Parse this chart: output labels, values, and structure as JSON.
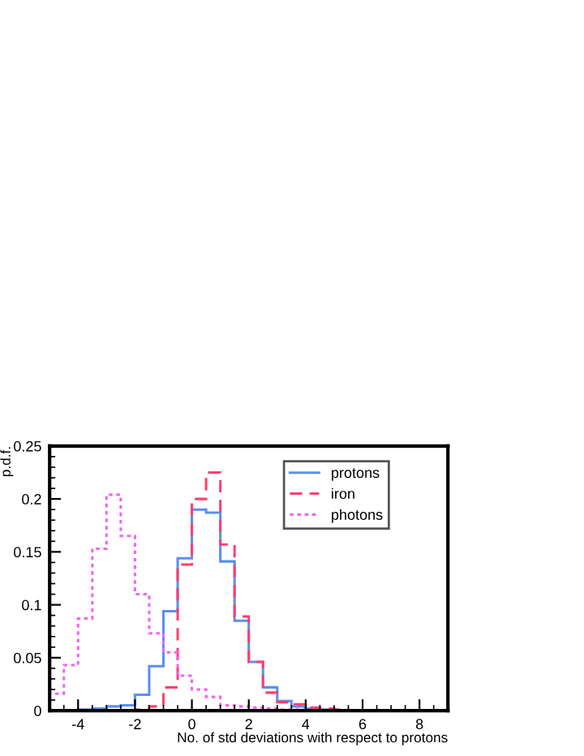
{
  "chart_data": {
    "type": "histogram",
    "xlabel": "No. of std deviations with respect to protons",
    "ylabel": "p.d.f.",
    "bins": [
      -5,
      -4.5,
      -4,
      -3.5,
      -3,
      -2.5,
      -2,
      -1.5,
      -1,
      -0.5,
      0,
      0.5,
      1,
      1.5,
      2,
      2.5,
      3,
      3.5,
      4,
      4.5,
      5,
      5.5,
      6,
      6.5,
      7,
      7.5,
      8,
      8.5,
      9
    ],
    "series": [
      {
        "name": "protons",
        "color": "#5b8ff0",
        "line_style": "solid",
        "values": [
          0,
          0,
          0.001,
          0.002,
          0.004,
          0.005,
          0.015,
          0.042,
          0.094,
          0.144,
          0.19,
          0.187,
          0.141,
          0.085,
          0.046,
          0.022,
          0.009,
          0.004,
          0.002,
          0.001,
          0,
          0,
          0,
          0,
          0,
          0,
          0,
          0
        ]
      },
      {
        "name": "iron",
        "color": "#ff4070",
        "line_style": "dashed",
        "values": [
          0,
          0,
          0,
          0,
          0,
          0,
          0.001,
          0.004,
          0.022,
          0.138,
          0.2,
          0.225,
          0.157,
          0.089,
          0.046,
          0.017,
          0.008,
          0.006,
          0.003,
          0.002,
          0.001,
          0,
          0,
          0,
          0,
          0,
          0,
          0
        ]
      },
      {
        "name": "photons",
        "color": "#f066f0",
        "line_style": "dotted",
        "values": [
          0.016,
          0.043,
          0.087,
          0.153,
          0.204,
          0.165,
          0.11,
          0.073,
          0.055,
          0.033,
          0.02,
          0.013,
          0.005,
          0.004,
          0.003,
          0.002,
          0.001,
          0.001,
          0,
          0,
          0,
          0,
          0,
          0,
          0,
          0,
          0,
          0
        ]
      }
    ],
    "xlim": [
      -5,
      9
    ],
    "ylim": [
      0,
      0.25
    ],
    "xticks": [
      -4,
      -2,
      0,
      2,
      4,
      6,
      8
    ],
    "yticks": [
      0,
      0.05,
      0.1,
      0.15,
      0.2,
      0.25
    ],
    "grid": false,
    "legend": "top right"
  }
}
